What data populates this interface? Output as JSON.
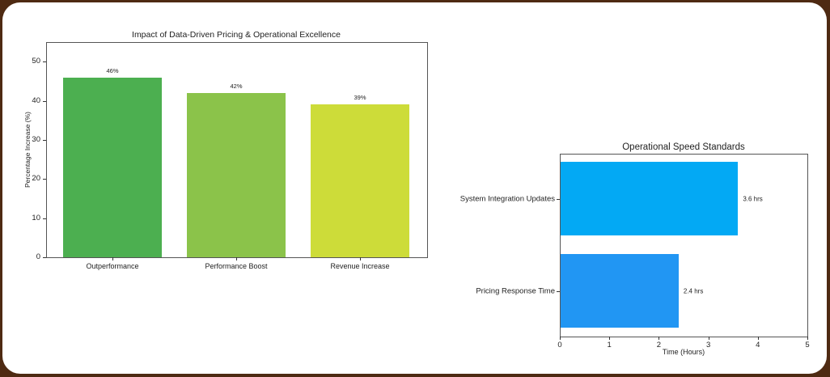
{
  "chart_data": [
    {
      "type": "bar",
      "title": "Impact of Data-Driven Pricing & Operational Excellence",
      "xlabel": "",
      "ylabel": "Percentage Increase (%)",
      "categories": [
        "Outperformance",
        "Performance Boost",
        "Revenue Increase"
      ],
      "values": [
        46,
        42,
        39
      ],
      "value_labels": [
        "46%",
        "42%",
        "39%"
      ],
      "colors": [
        "#4CAF50",
        "#8BC34A",
        "#CDDC39"
      ],
      "ylim": [
        0,
        55
      ],
      "yticks": [
        0,
        10,
        20,
        30,
        40,
        50
      ],
      "ytick_labels": [
        "0",
        "10",
        "20",
        "30",
        "40",
        "50"
      ],
      "grid": false,
      "legend": null
    },
    {
      "type": "bar",
      "orientation": "horizontal",
      "title": "Operational Speed Standards",
      "xlabel": "Time (Hours)",
      "ylabel": "",
      "categories": [
        "System Integration Updates",
        "Pricing Response Time"
      ],
      "values": [
        3.6,
        2.4
      ],
      "value_labels": [
        "3.6 hrs",
        "2.4 hrs"
      ],
      "colors": [
        "#03A9F4",
        "#2196F3"
      ],
      "xlim": [
        0,
        5
      ],
      "xticks": [
        0,
        1,
        2,
        3,
        4,
        5
      ],
      "xtick_labels": [
        "0",
        "1",
        "2",
        "3",
        "4",
        "5"
      ],
      "grid": false,
      "legend": null
    }
  ],
  "frame": {
    "border_color": "#4e2a12",
    "background": "#ffffff"
  }
}
